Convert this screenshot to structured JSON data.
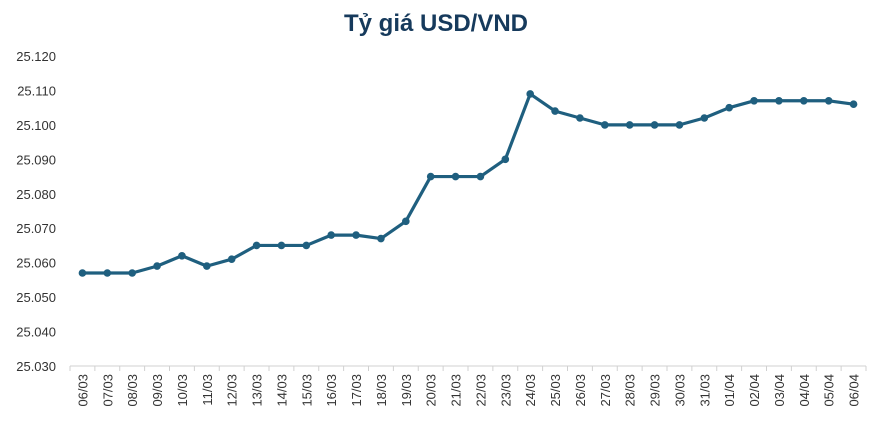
{
  "chart_data": {
    "type": "line",
    "title": "Tỷ giá USD/VND",
    "xlabel": "",
    "ylabel": "",
    "ylim": [
      25030,
      25120
    ],
    "y_ticks": [
      "25.030",
      "25.040",
      "25.050",
      "25.060",
      "25.070",
      "25.080",
      "25.090",
      "25.100",
      "25.110",
      "25.120"
    ],
    "y_tick_values": [
      25030,
      25040,
      25050,
      25060,
      25070,
      25080,
      25090,
      25100,
      25110,
      25120
    ],
    "grid": false,
    "legend": "none",
    "line_color": "#1f5f7f",
    "categories": [
      "06/03",
      "07/03",
      "08/03",
      "09/03",
      "10/03",
      "11/03",
      "12/03",
      "13/03",
      "14/03",
      "15/03",
      "16/03",
      "17/03",
      "18/03",
      "19/03",
      "20/03",
      "21/03",
      "22/03",
      "23/03",
      "24/03",
      "25/03",
      "26/03",
      "27/03",
      "28/03",
      "29/03",
      "30/03",
      "31/03",
      "01/04",
      "02/04",
      "03/04",
      "04/04",
      "05/04",
      "06/04"
    ],
    "values": [
      25057,
      25057,
      25057,
      25059,
      25062,
      25059,
      25061,
      25065,
      25065,
      25065,
      25068,
      25068,
      25067,
      25072,
      25085,
      25085,
      25085,
      25090,
      25109,
      25104,
      25102,
      25100,
      25100,
      25100,
      25100,
      25102,
      25105,
      25107,
      25107,
      25107,
      25107,
      25106
    ]
  }
}
